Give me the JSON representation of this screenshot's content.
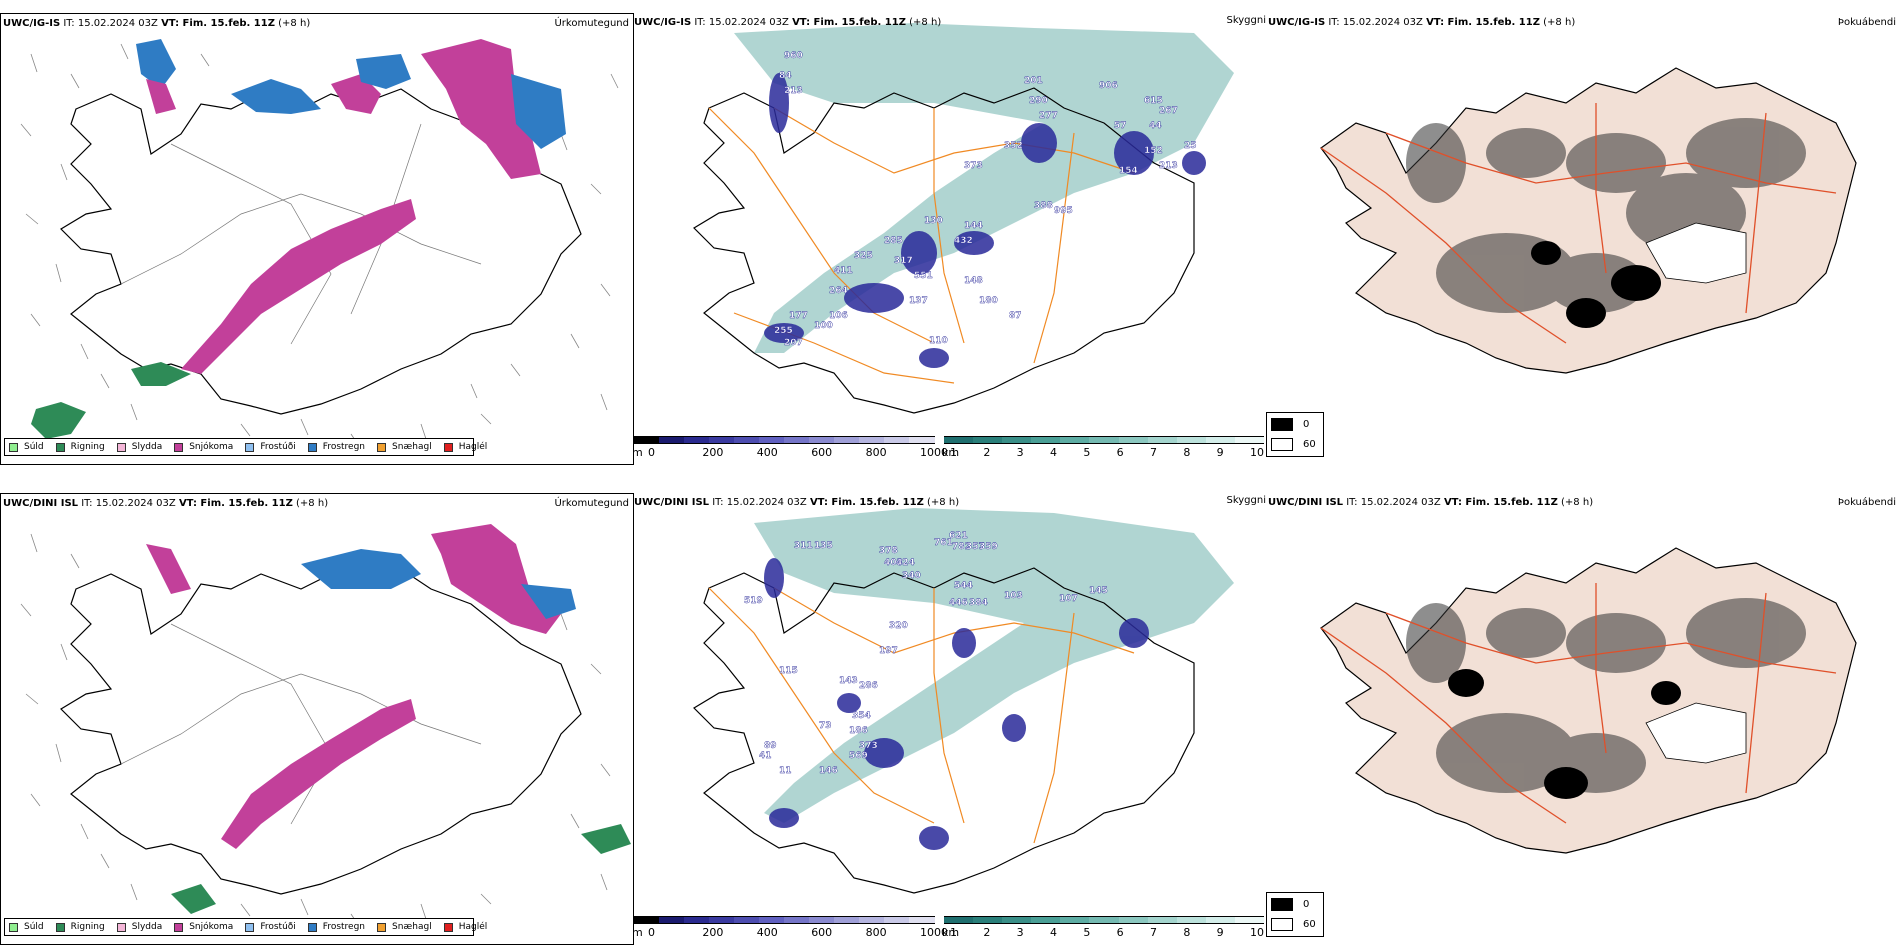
{
  "rows": [
    {
      "precip_header": {
        "model": "UWC/IG-IS",
        "it": "IT: 15.02.2024 03Z",
        "vt_label": "VT: Fim. 15.feb. 11Z",
        "lead": "(+8 h)",
        "right": "Úrkomutegund"
      },
      "cloud_header": {
        "model": "UWC/IG-IS",
        "it": "IT: 15.02.2024 03Z",
        "vt_label": "VT: Fim. 15.feb. 11Z",
        "lead": "(+8 h)",
        "right": "Skyggni"
      },
      "fog_header": {
        "model": "UWC/IG-IS",
        "it": "IT: 15.02.2024 03Z",
        "vt_label": "VT: Fim. 15.feb. 11Z",
        "lead": "(+8 h)",
        "right": "Þokuábendi"
      },
      "labels": [
        "960",
        "84",
        "213",
        "201",
        "906",
        "615",
        "267",
        "290",
        "277",
        "57",
        "44",
        "352",
        "152",
        "213",
        "25",
        "154",
        "373",
        "388",
        "995",
        "130",
        "144",
        "285",
        "432",
        "325",
        "317",
        "551",
        "411",
        "148",
        "264",
        "137",
        "180",
        "177",
        "106",
        "87",
        "255",
        "100",
        "207",
        "110"
      ]
    },
    {
      "precip_header": {
        "model": "UWC/DINI ISL",
        "it": "IT: 15.02.2024 03Z",
        "vt_label": "VT: Fim. 15.feb. 11Z",
        "lead": "(+8 h)",
        "right": "Úrkomutegund"
      },
      "cloud_header": {
        "model": "UWC/DINI ISL",
        "it": "IT: 15.02.2024 03Z",
        "vt_label": "VT: Fim. 15.feb. 11Z",
        "lead": "(+8 h)",
        "right": "Skyggni"
      },
      "fog_header": {
        "model": "UWC/DINI ISL",
        "it": "IT: 15.02.2024 03Z",
        "vt_label": "VT: Fim. 15.feb. 11Z",
        "lead": "(+8 h)",
        "right": "Þokuábendi"
      },
      "labels": [
        "311",
        "135",
        "519",
        "378",
        "761",
        "621",
        "403",
        "424",
        "782",
        "357",
        "359",
        "340",
        "544",
        "103",
        "446",
        "384",
        "107",
        "145",
        "320",
        "197",
        "115",
        "143",
        "286",
        "73",
        "354",
        "186",
        "89",
        "373",
        "41",
        "569",
        "146",
        "11"
      ]
    }
  ],
  "precip_legend": [
    {
      "label": "Súld",
      "color": "#90ee90"
    },
    {
      "label": "Rigning",
      "color": "#2e8b57"
    },
    {
      "label": "Slydda",
      "color": "#f4b6d8"
    },
    {
      "label": "Snjókoma",
      "color": "#c2409a"
    },
    {
      "label": "Frostúði",
      "color": "#8fc0f0"
    },
    {
      "label": "Frostregn",
      "color": "#2f7cc4"
    },
    {
      "label": "Snæhagl",
      "color": "#f0a030"
    },
    {
      "label": "Haglél",
      "color": "#e02020"
    }
  ],
  "cloud_base_scale": {
    "unit": "m",
    "ticks": [
      "0",
      "200",
      "400",
      "600",
      "800",
      "1000"
    ],
    "colors": [
      "#000000",
      "#1a1a6e",
      "#2a2a8f",
      "#3a3aa0",
      "#4d4db0",
      "#6060c0",
      "#7575c8",
      "#8a8ad0",
      "#a0a0d8",
      "#b5b5e0",
      "#cacae8",
      "#e0e0f0"
    ]
  },
  "visibility_scale": {
    "unit": "km",
    "ticks": [
      "1",
      "2",
      "3",
      "4",
      "5",
      "6",
      "7",
      "8",
      "9",
      "10"
    ],
    "colors": [
      "#1f6f6f",
      "#2a7f7a",
      "#3a8f88",
      "#4a9f96",
      "#5eada4",
      "#75bab2",
      "#8cc8c0",
      "#a4d5ce",
      "#bce2dc",
      "#d4eeea",
      "#ecf8f6"
    ]
  },
  "fog_scale": {
    "values": [
      "0",
      "60"
    ],
    "colors": [
      "#000000",
      "#ffffff"
    ]
  }
}
